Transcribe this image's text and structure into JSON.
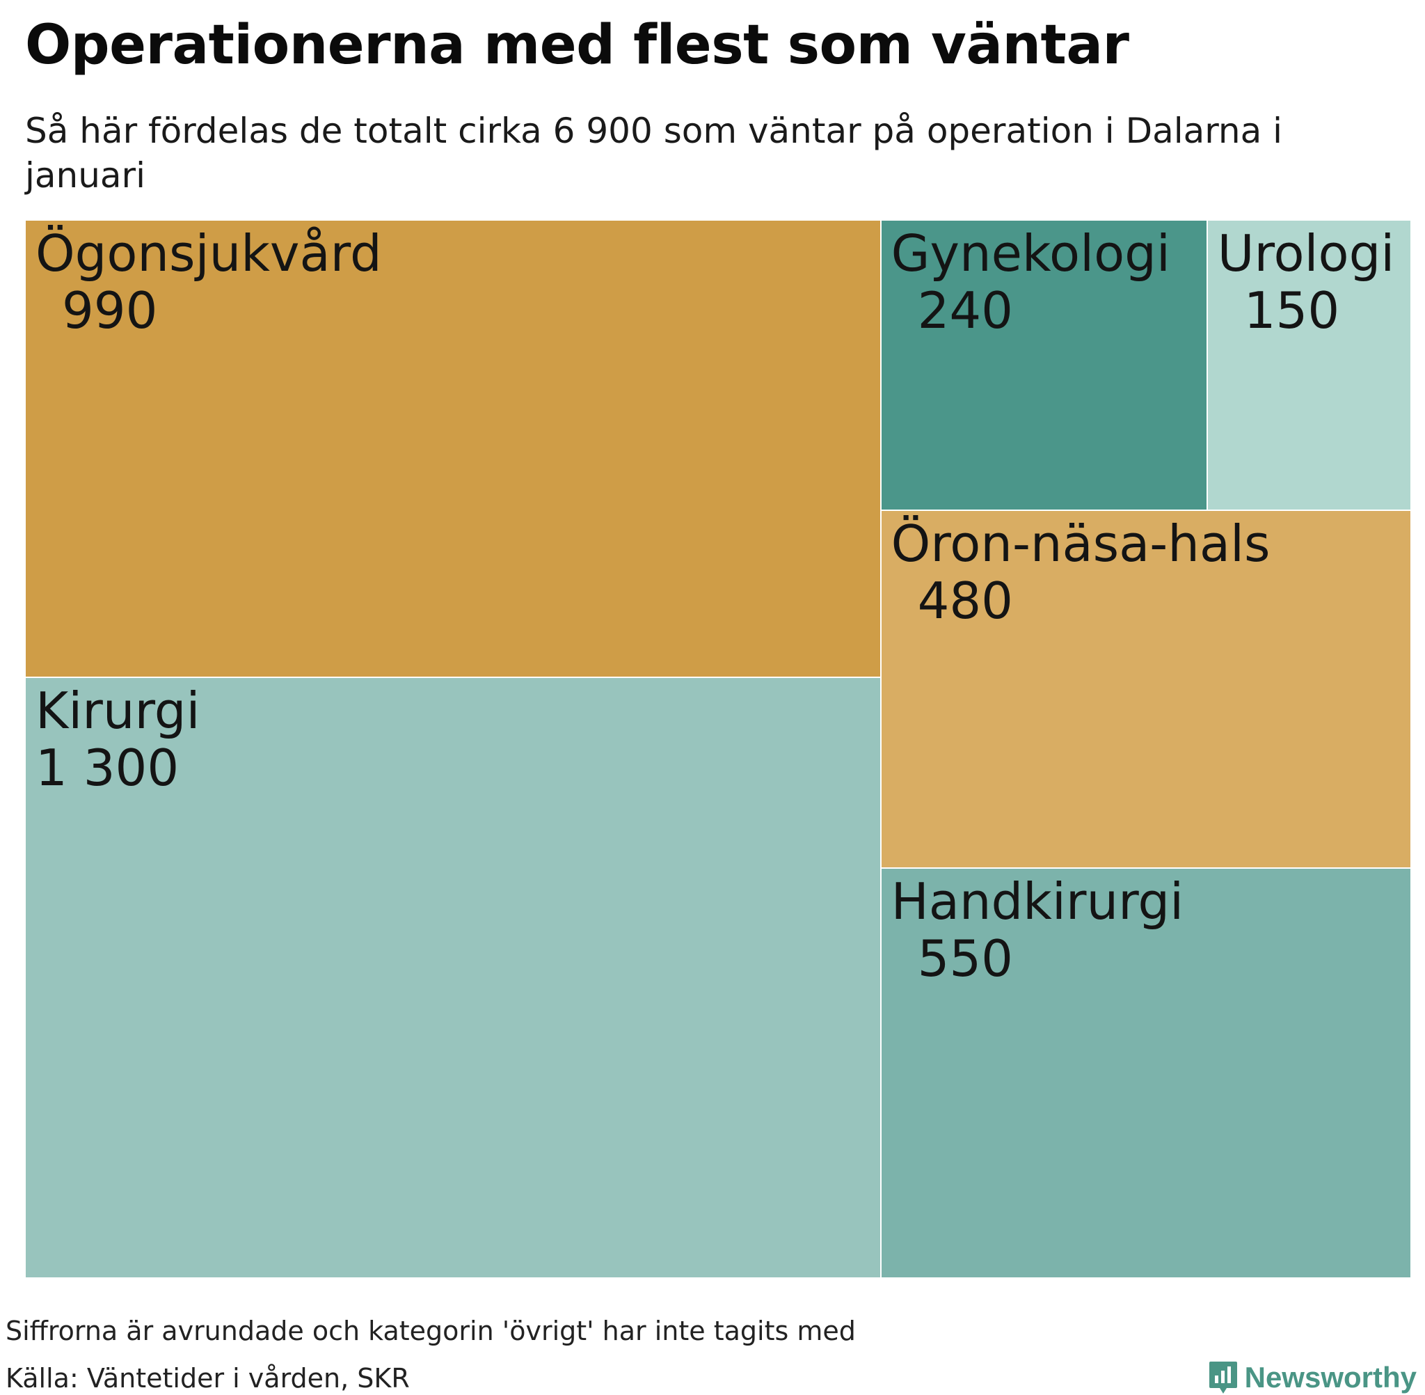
{
  "header": {
    "title": "Operationerna med flest som väntar",
    "subtitle": "Så här fördelas de totalt cirka 6 900 som väntar på operation i Dalarna i januari"
  },
  "chart_data": {
    "type": "treemap",
    "title": "Operationerna med flest som väntar",
    "subtitle": "Så här fördelas de totalt cirka 6 900 som väntar på operation i Dalarna i januari",
    "items": [
      {
        "name": "Ögonsjukvård",
        "value": 990,
        "label": "990",
        "color": "#cf9d47"
      },
      {
        "name": "Kirurgi",
        "value": 1300,
        "label": "1 300",
        "color": "#98c4bd"
      },
      {
        "name": "Gynekologi",
        "value": 240,
        "label": "240",
        "color": "#4b968a"
      },
      {
        "name": "Urologi",
        "value": 150,
        "label": "150",
        "color": "#b1d7cf"
      },
      {
        "name": "Öron-näsa-hals",
        "value": 480,
        "label": "480",
        "color": "#d9ad63"
      },
      {
        "name": "Handkirurgi",
        "value": 550,
        "label": "550",
        "color": "#7cb3ab"
      }
    ]
  },
  "footer": {
    "note": "Siffrorna är avrundade och kategorin 'övrigt' har inte tagits med",
    "source": "Källa: Väntetider i vården, SKR",
    "brand": "Newsworthy",
    "logo_icon": "bar-chart-speech-bubble-icon",
    "brand_color": "#4a9585"
  }
}
